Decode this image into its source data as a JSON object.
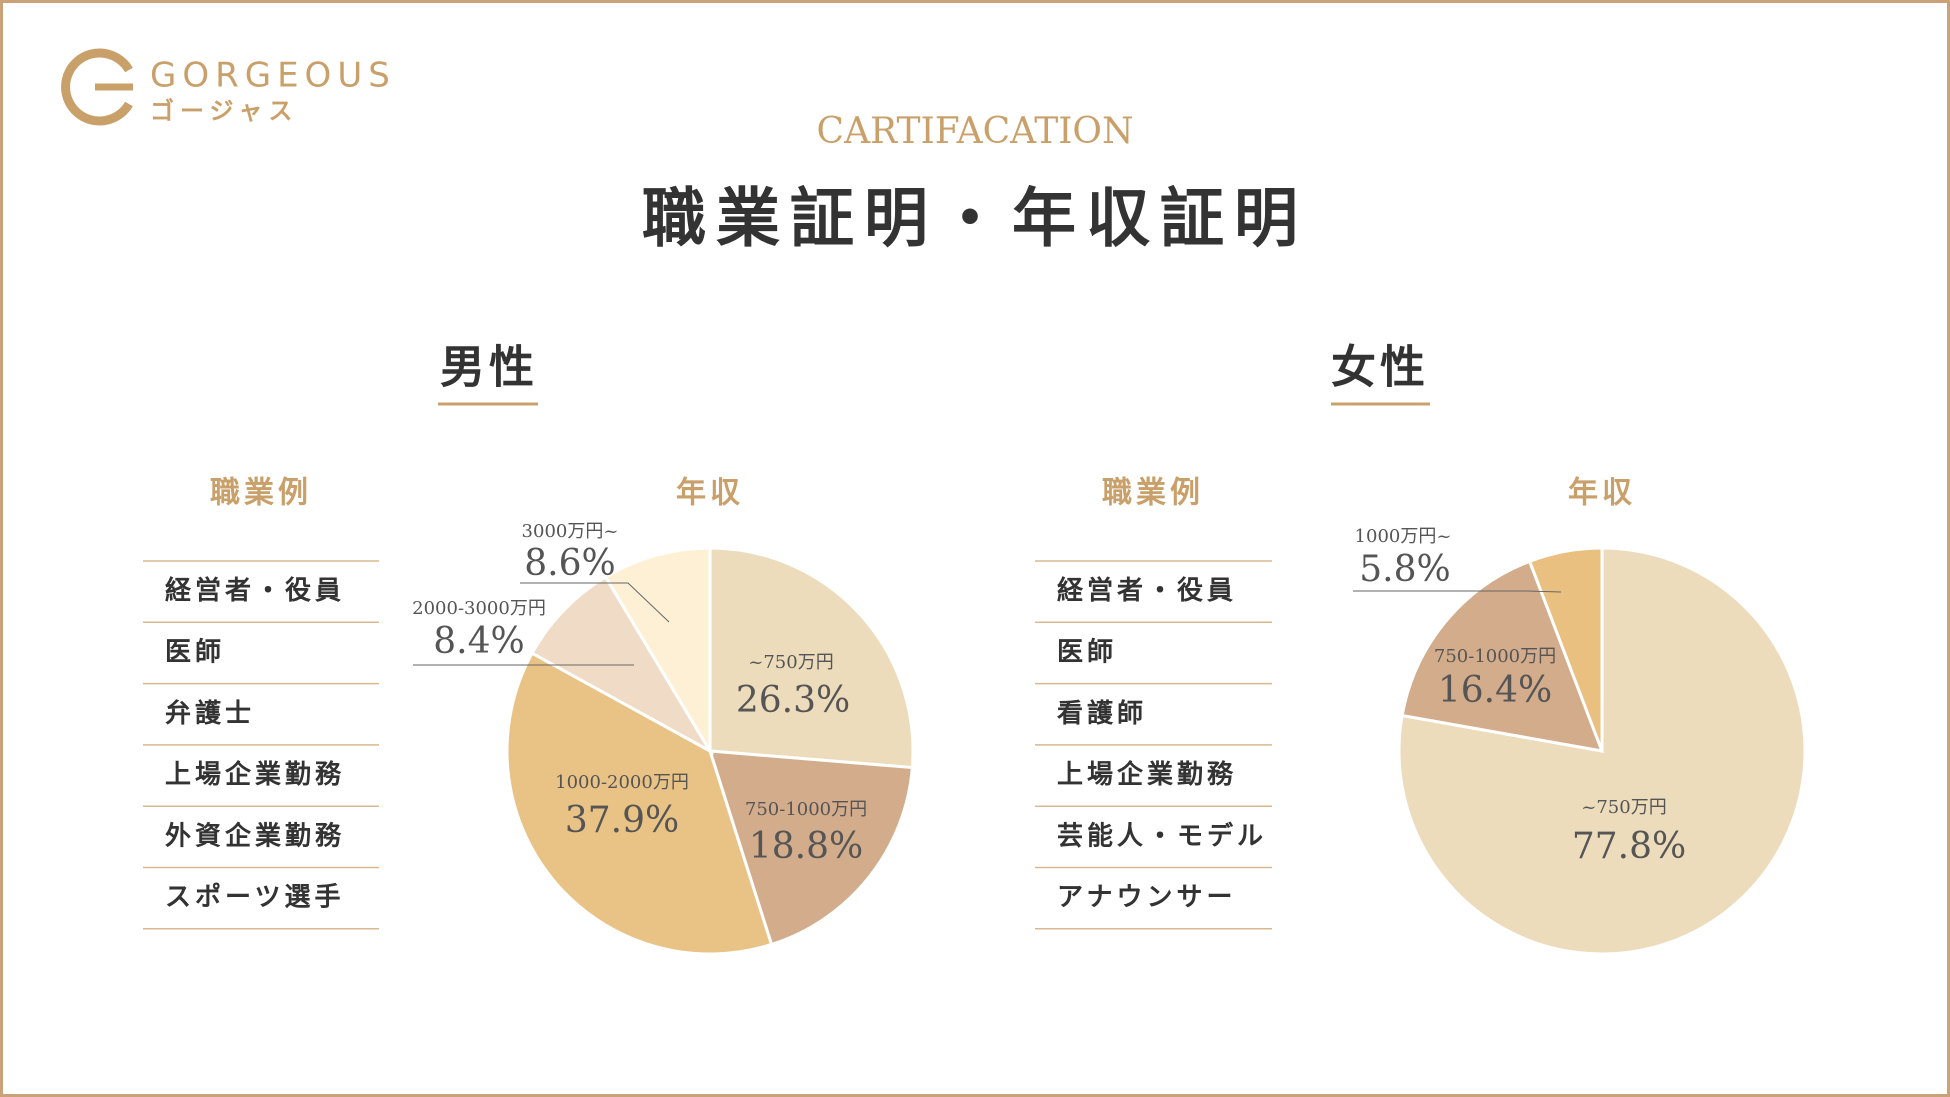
{
  "logo": {
    "name": "GORGEOUS",
    "kana": "ゴージャス"
  },
  "header": {
    "eyebrow": "CARTIFACATION",
    "title": "職業証明・年収証明"
  },
  "sections": [
    {
      "title": "男性",
      "jobs_heading": "職業例",
      "jobs": [
        "経営者・役員",
        "医師",
        "弁護士",
        "上場企業勤務",
        "外資企業勤務",
        "スポーツ選手"
      ]
    },
    {
      "title": "女性",
      "jobs_heading": "職業例",
      "jobs": [
        "経営者・役員",
        "医師",
        "看護師",
        "上場企業勤務",
        "芸能人・モデル",
        "アナウンサー"
      ]
    }
  ],
  "chart_data": [
    {
      "type": "pie",
      "title": "年収",
      "categories": [
        "~750万円",
        "750-1000万円",
        "1000-2000万円",
        "2000-3000万円",
        "3000万円~"
      ],
      "values": [
        26.3,
        18.8,
        37.9,
        8.4,
        8.6
      ],
      "value_labels": [
        "26.3%",
        "18.8%",
        "37.9%",
        "8.4%",
        "8.6%"
      ],
      "colors": [
        "#ecdcbc",
        "#d3ac8b",
        "#e9c385",
        "#f0dcc6",
        "#fdf0d5"
      ]
    },
    {
      "type": "pie",
      "title": "年収",
      "categories": [
        "~750万円",
        "750-1000万円",
        "1000万円~"
      ],
      "values": [
        77.8,
        16.4,
        5.8
      ],
      "value_labels": [
        "77.8%",
        "16.4%",
        "5.8%"
      ],
      "colors": [
        "#ecdcbc",
        "#d3ac8b",
        "#e9c07f"
      ]
    }
  ]
}
